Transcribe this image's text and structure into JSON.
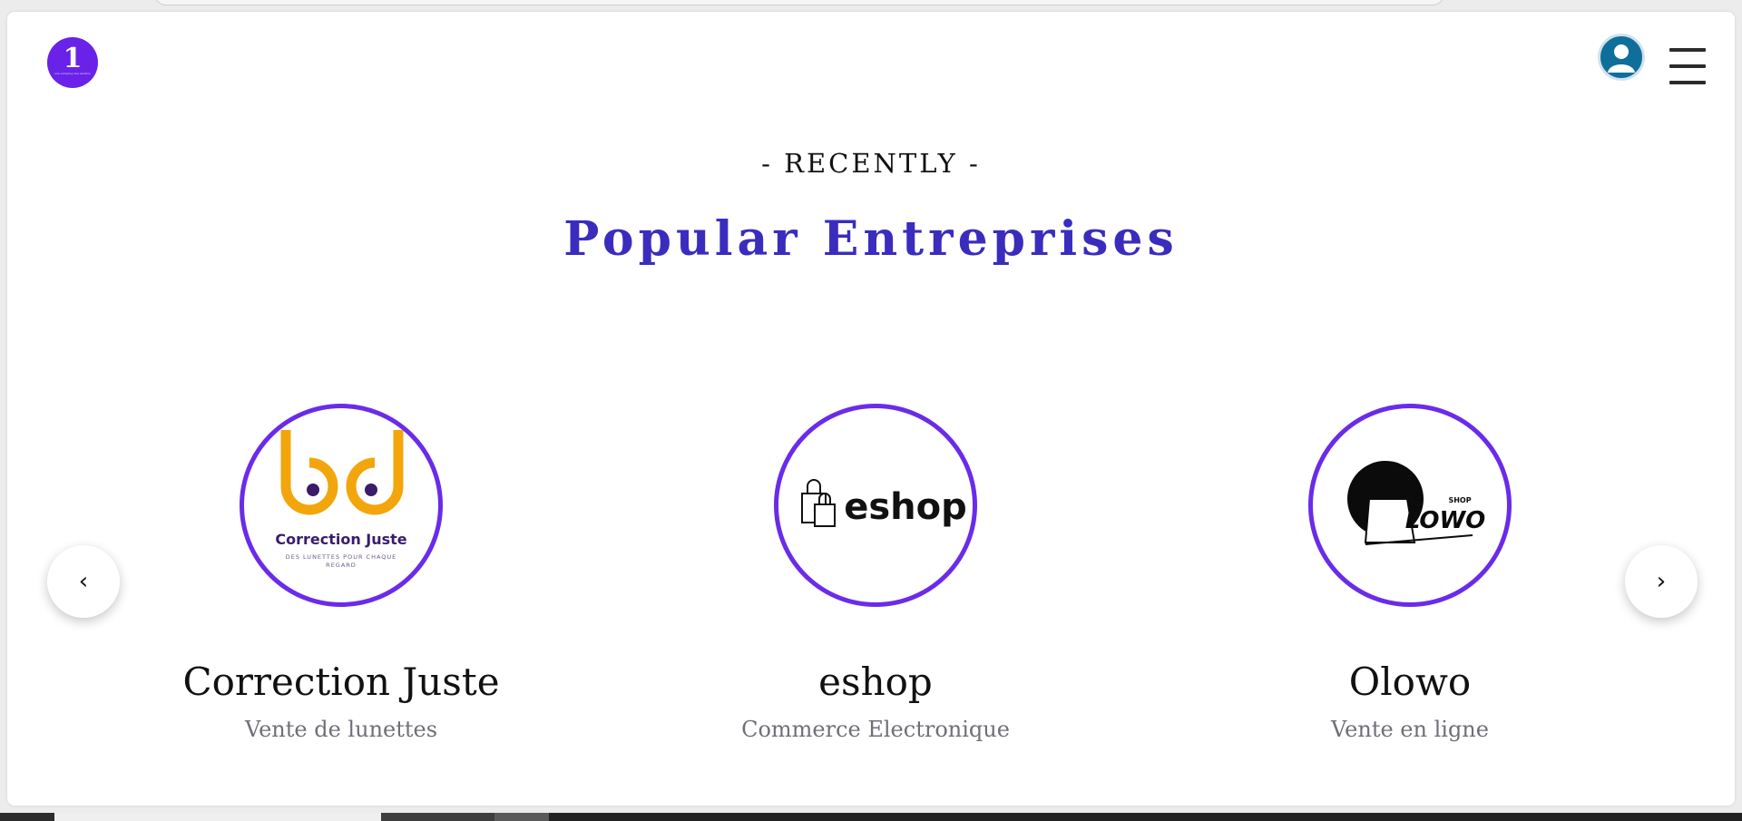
{
  "header": {
    "logo_glyph": "1",
    "logo_tagline": "one company one solution"
  },
  "section": {
    "eyebrow": "- RECENTLY -",
    "title": "Popular Entreprises"
  },
  "companies": [
    {
      "name": "Correction Juste",
      "category": "Vente de lunettes",
      "logo_title": "Correction Juste",
      "logo_subtitle": "DES LUNETTES POUR CHAQUE",
      "logo_subtitle2": "REGARD"
    },
    {
      "name": "eshop",
      "category": "Commerce Electronique",
      "logo_title": "eshop"
    },
    {
      "name": "Olowo",
      "category": "Vente en ligne",
      "logo_title": "LOWO",
      "logo_subtitle": "SHOP"
    }
  ],
  "carousel": {
    "prev_icon": "‹",
    "next_icon": "›"
  },
  "colors": {
    "accent_purple": "#6a2bea",
    "title_blue": "#3a2dbd",
    "logo_gold": "#f2a60c"
  }
}
